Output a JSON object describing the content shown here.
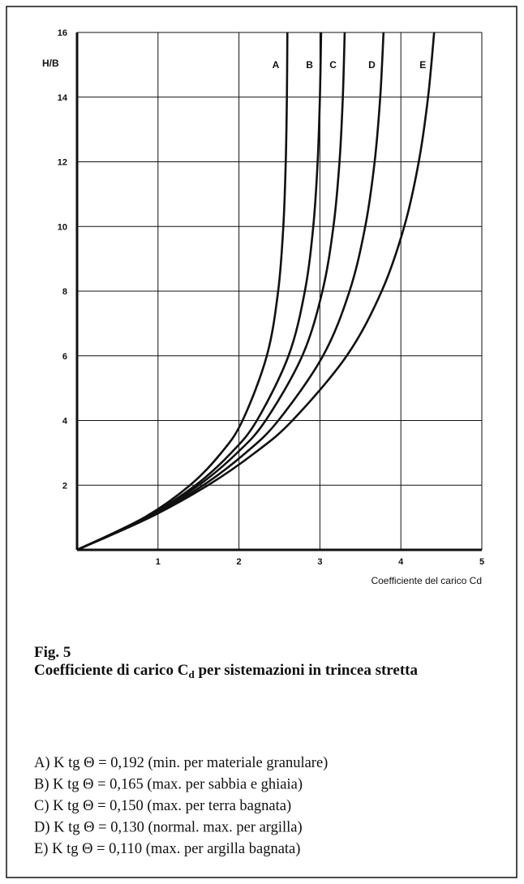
{
  "chart_data": {
    "type": "line",
    "title": [
      "Coefficiente di carico C",
      "d",
      " per sistemazioni in trincea stretta"
    ],
    "figure": "Fig. 5",
    "xlabel": "Coefficiente del carico Cd",
    "ylabel": "H/B",
    "xlim": [
      0,
      5
    ],
    "ylim": [
      0,
      16
    ],
    "xticks": [
      1,
      2,
      3,
      4,
      5
    ],
    "yticks": [
      2,
      4,
      6,
      8,
      10,
      12,
      14,
      16
    ],
    "grid": true,
    "color": "#111111",
    "series": [
      {
        "name": "A",
        "x": [
          0,
          0.83,
          1.396,
          1.781,
          2.044,
          2.344,
          2.484,
          2.548,
          2.578,
          2.592,
          2.598
        ],
        "values": [
          0,
          1,
          2,
          3,
          4,
          6,
          8,
          10,
          12,
          14,
          16
        ]
      },
      {
        "name": "B",
        "x": [
          0,
          0.852,
          1.464,
          1.904,
          2.221,
          2.612,
          2.814,
          2.918,
          2.972,
          3.0,
          3.015
        ],
        "values": [
          0,
          1,
          2,
          3,
          4,
          6,
          8,
          10,
          12,
          14,
          16
        ]
      },
      {
        "name": "C",
        "x": [
          0,
          0.864,
          1.504,
          1.978,
          2.329,
          2.782,
          3.031,
          3.167,
          3.242,
          3.283,
          3.306
        ],
        "values": [
          0,
          1,
          2,
          3,
          4,
          6,
          8,
          10,
          12,
          14,
          16
        ]
      },
      {
        "name": "D",
        "x": [
          0,
          0.88,
          1.56,
          2.083,
          2.486,
          3.038,
          3.366,
          3.56,
          3.676,
          3.745,
          3.786
        ],
        "values": [
          0,
          1,
          2,
          3,
          4,
          6,
          8,
          10,
          12,
          14,
          16
        ]
      },
      {
        "name": "E",
        "x": [
          0,
          0.898,
          1.618,
          2.196,
          2.66,
          3.331,
          3.763,
          4.042,
          4.221,
          4.336,
          4.411
        ],
        "values": [
          0,
          1,
          2,
          3,
          4,
          6,
          8,
          10,
          12,
          14,
          16
        ]
      }
    ],
    "notes": [
      "A) K tg Θ = 0,192 (min. per materiale granulare)",
      "B) K tg Θ = 0,165 (max. per sabbia e ghiaia)",
      "C) K tg Θ = 0,150 (max. per terra bagnata)",
      "D) K tg Θ = 0,130 (normal. max. per argilla)",
      "E) K tg Θ = 0,110 (max. per argilla bagnata)"
    ]
  }
}
